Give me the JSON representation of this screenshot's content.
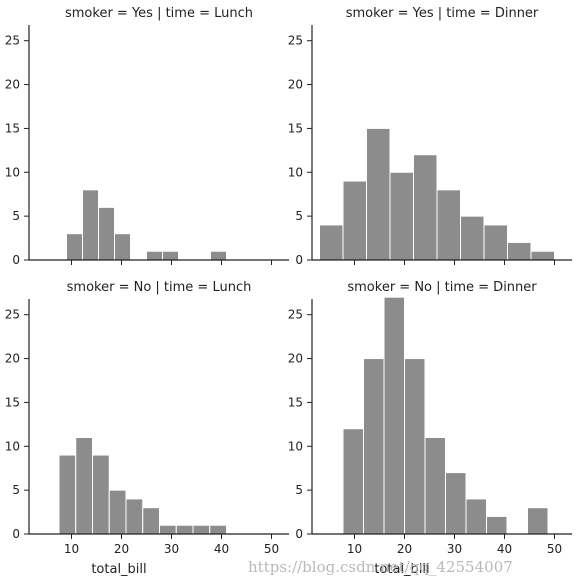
{
  "chart_data": {
    "type": "bar",
    "grid": false,
    "bar_color": "#8c8c8c",
    "bar_edge_color": "#ffffff",
    "xlabel": "total_bill",
    "xlim": [
      1.5,
      53.5
    ],
    "ylim": [
      0,
      28.5
    ],
    "xticks": [
      10,
      20,
      30,
      40,
      50
    ],
    "yticks": [
      0,
      5,
      10,
      15,
      20,
      25
    ],
    "facets": [
      {
        "title": "smoker = Yes | time = Lunch",
        "bins": [
          {
            "x0": 9.0,
            "x1": 12.2,
            "count": 3
          },
          {
            "x0": 12.2,
            "x1": 15.4,
            "count": 8
          },
          {
            "x0": 15.4,
            "x1": 18.6,
            "count": 6
          },
          {
            "x0": 18.6,
            "x1": 21.8,
            "count": 3
          },
          {
            "x0": 21.8,
            "x1": 25.0,
            "count": 0
          },
          {
            "x0": 25.0,
            "x1": 28.2,
            "count": 1
          },
          {
            "x0": 28.2,
            "x1": 31.4,
            "count": 1
          },
          {
            "x0": 31.4,
            "x1": 34.6,
            "count": 0
          },
          {
            "x0": 34.6,
            "x1": 37.8,
            "count": 0
          },
          {
            "x0": 37.8,
            "x1": 41.0,
            "count": 1
          }
        ]
      },
      {
        "title": "smoker = Yes | time = Dinner",
        "bins": [
          {
            "x0": 3.0,
            "x1": 7.7,
            "count": 4
          },
          {
            "x0": 7.7,
            "x1": 12.4,
            "count": 9
          },
          {
            "x0": 12.4,
            "x1": 17.1,
            "count": 15
          },
          {
            "x0": 17.1,
            "x1": 21.8,
            "count": 10
          },
          {
            "x0": 21.8,
            "x1": 26.5,
            "count": 12
          },
          {
            "x0": 26.5,
            "x1": 31.2,
            "count": 8
          },
          {
            "x0": 31.2,
            "x1": 35.9,
            "count": 5
          },
          {
            "x0": 35.9,
            "x1": 40.6,
            "count": 4
          },
          {
            "x0": 40.6,
            "x1": 45.3,
            "count": 2
          },
          {
            "x0": 45.3,
            "x1": 50.0,
            "count": 1
          }
        ]
      },
      {
        "title": "smoker = No | time = Lunch",
        "bins": [
          {
            "x0": 7.5,
            "x1": 10.85,
            "count": 9
          },
          {
            "x0": 10.85,
            "x1": 14.2,
            "count": 11
          },
          {
            "x0": 14.2,
            "x1": 17.55,
            "count": 9
          },
          {
            "x0": 17.55,
            "x1": 20.9,
            "count": 5
          },
          {
            "x0": 20.9,
            "x1": 24.25,
            "count": 4
          },
          {
            "x0": 24.25,
            "x1": 27.6,
            "count": 3
          },
          {
            "x0": 27.6,
            "x1": 30.95,
            "count": 1
          },
          {
            "x0": 30.95,
            "x1": 34.3,
            "count": 1
          },
          {
            "x0": 34.3,
            "x1": 37.65,
            "count": 1
          },
          {
            "x0": 37.65,
            "x1": 41.0,
            "count": 1
          }
        ]
      },
      {
        "title": "smoker = No | time = Dinner",
        "bins": [
          {
            "x0": 7.7,
            "x1": 11.8,
            "count": 12
          },
          {
            "x0": 11.8,
            "x1": 15.9,
            "count": 20
          },
          {
            "x0": 15.9,
            "x1": 20.0,
            "count": 27
          },
          {
            "x0": 20.0,
            "x1": 24.1,
            "count": 20
          },
          {
            "x0": 24.1,
            "x1": 28.2,
            "count": 11
          },
          {
            "x0": 28.2,
            "x1": 32.3,
            "count": 7
          },
          {
            "x0": 32.3,
            "x1": 36.4,
            "count": 4
          },
          {
            "x0": 36.4,
            "x1": 40.5,
            "count": 2
          },
          {
            "x0": 40.5,
            "x1": 44.6,
            "count": 0
          },
          {
            "x0": 44.6,
            "x1": 48.7,
            "count": 3
          }
        ]
      }
    ]
  },
  "watermark": "https://blog.csdn.net/qq_42554007"
}
